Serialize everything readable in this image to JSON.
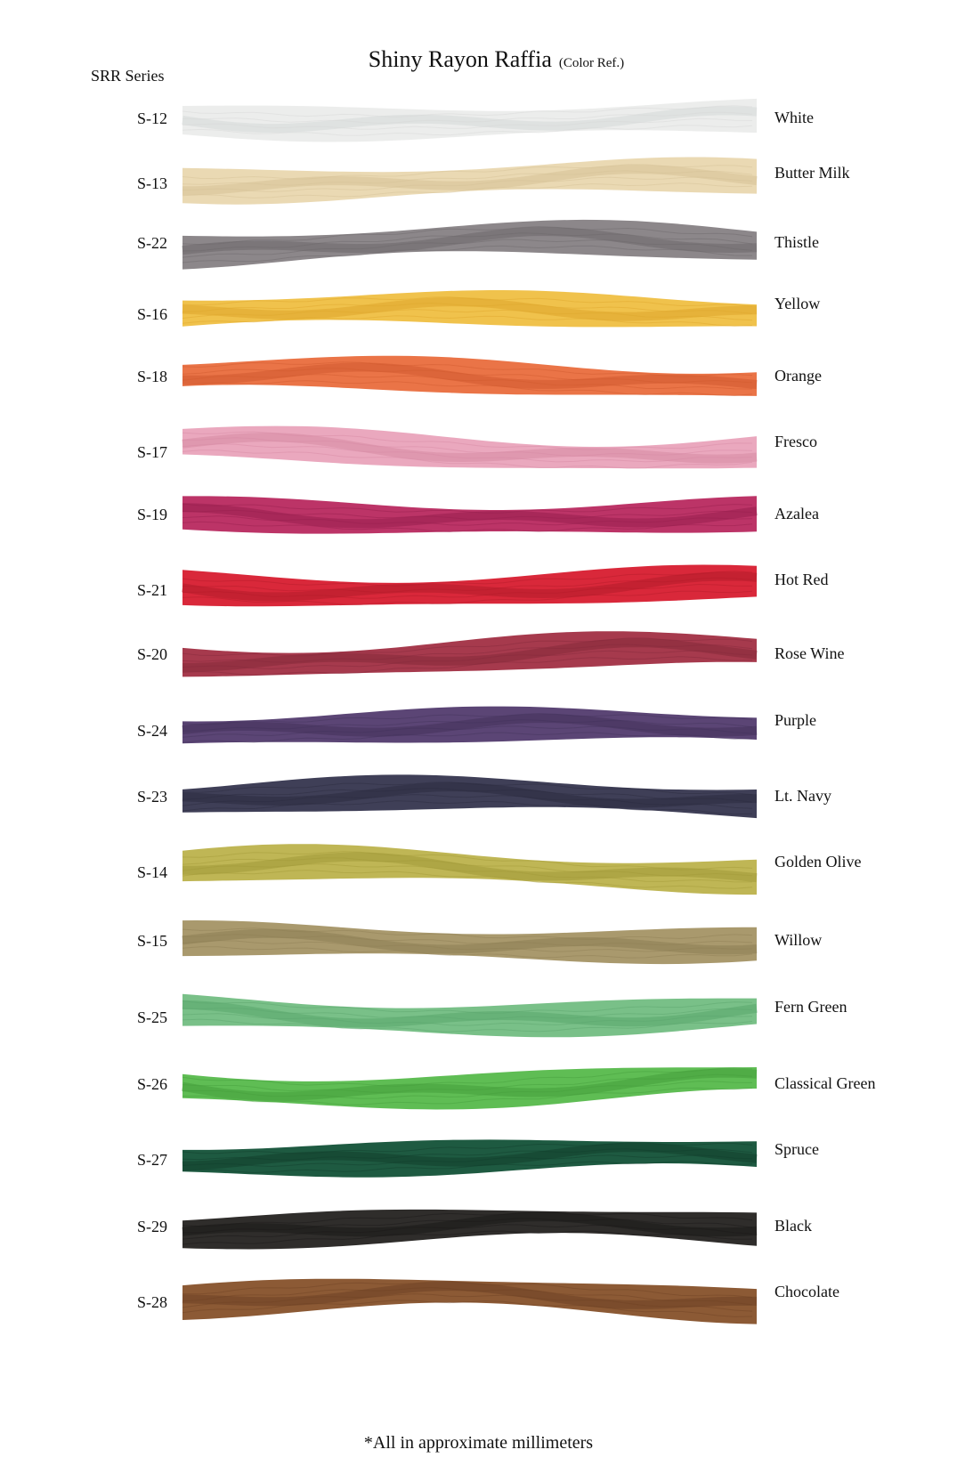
{
  "header": {
    "series": "SRR Series",
    "title": "Shiny Rayon Raffia",
    "title_note": "(Color Ref.)"
  },
  "swatches": [
    {
      "code": "S-12",
      "name": "White",
      "color": "#ecedec",
      "shade": "#d6d8d8"
    },
    {
      "code": "S-13",
      "name": "Butter Milk",
      "color": "#ead9b3",
      "shade": "#d5c196"
    },
    {
      "code": "S-22",
      "name": "Thistle",
      "color": "#8c878a",
      "shade": "#6d686b"
    },
    {
      "code": "S-16",
      "name": "Yellow",
      "color": "#f0c24c",
      "shade": "#dea62c"
    },
    {
      "code": "S-18",
      "name": "Orange",
      "color": "#ea7447",
      "shade": "#d05a2f"
    },
    {
      "code": "S-17",
      "name": "Fresco",
      "color": "#eaa8be",
      "shade": "#d68aa3"
    },
    {
      "code": "S-19",
      "name": "Azalea",
      "color": "#bc3467",
      "shade": "#971f4e"
    },
    {
      "code": "S-21",
      "name": "Hot Red",
      "color": "#d9283a",
      "shade": "#b31b2a"
    },
    {
      "code": "S-20",
      "name": "Rose Wine",
      "color": "#a63a4d",
      "shade": "#852a3b"
    },
    {
      "code": "S-24",
      "name": "Purple",
      "color": "#5b4575",
      "shade": "#43325a"
    },
    {
      "code": "S-23",
      "name": "Lt. Navy",
      "color": "#3f3f57",
      "shade": "#2c2c40"
    },
    {
      "code": "S-14",
      "name": "Golden Olive",
      "color": "#bfb655",
      "shade": "#a19938"
    },
    {
      "code": "S-15",
      "name": "Willow",
      "color": "#a9996d",
      "shade": "#8d7e54"
    },
    {
      "code": "S-25",
      "name": "Fern Green",
      "color": "#79c088",
      "shade": "#5aa56c"
    },
    {
      "code": "S-26",
      "name": "Classical Green",
      "color": "#5fbd54",
      "shade": "#449e3b"
    },
    {
      "code": "S-27",
      "name": "Spruce",
      "color": "#1e5a41",
      "shade": "#123f2c"
    },
    {
      "code": "S-29",
      "name": "Black",
      "color": "#2f2d2b",
      "shade": "#1a1918"
    },
    {
      "code": "S-28",
      "name": "Chocolate",
      "color": "#8c5a35",
      "shade": "#6e4224"
    }
  ],
  "footnote": "*All in approximate millimeters"
}
